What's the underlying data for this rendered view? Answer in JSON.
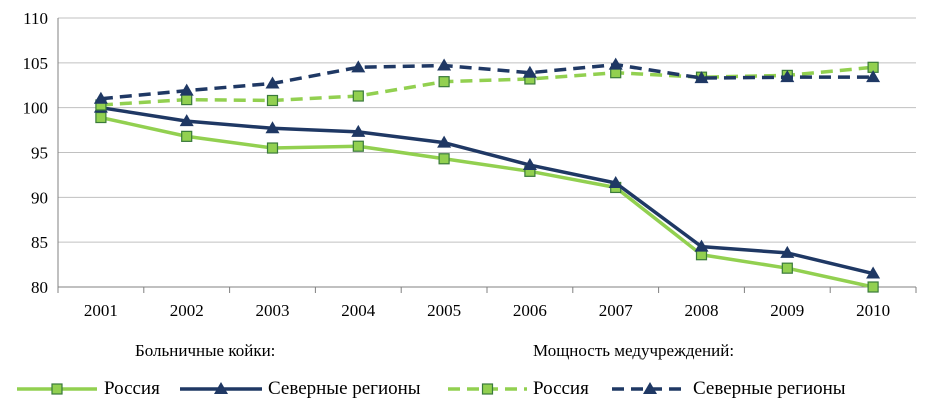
{
  "chart_data": {
    "type": "line",
    "title": "",
    "xlabel": "",
    "ylabel": "",
    "categories": [
      "2001",
      "2002",
      "2003",
      "2004",
      "2005",
      "2006",
      "2007",
      "2008",
      "2009",
      "2010"
    ],
    "ylim": [
      80,
      110
    ],
    "yticks": [
      "80",
      "85",
      "90",
      "95",
      "100",
      "105",
      "110"
    ],
    "grid": "horizontal",
    "legend_position": "bottom",
    "legend_groups": [
      {
        "title": "Больничные койки:"
      },
      {
        "title": "Мощность медучреждений:"
      }
    ],
    "series": [
      {
        "name": "Россия",
        "group": 0,
        "color": "#92d050",
        "style": "solid",
        "marker": "square",
        "values": [
          98.9,
          96.8,
          95.5,
          95.7,
          94.3,
          92.9,
          91.1,
          83.6,
          82.1,
          80.0
        ]
      },
      {
        "name": "Северные регионы",
        "group": 0,
        "color": "#1f3864",
        "style": "solid",
        "marker": "triangle",
        "values": [
          100.0,
          98.5,
          97.7,
          97.3,
          96.1,
          93.6,
          91.6,
          84.5,
          83.8,
          81.5
        ]
      },
      {
        "name": "Россия",
        "group": 1,
        "color": "#92d050",
        "style": "dashed",
        "marker": "square",
        "values": [
          100.3,
          100.9,
          100.8,
          101.3,
          102.9,
          103.2,
          103.9,
          103.4,
          103.6,
          104.5
        ]
      },
      {
        "name": "Северные регионы",
        "group": 1,
        "color": "#1f3864",
        "style": "dashed",
        "marker": "triangle",
        "values": [
          101.0,
          101.9,
          102.7,
          104.5,
          104.7,
          103.9,
          104.8,
          103.3,
          103.4,
          103.4
        ]
      }
    ]
  }
}
